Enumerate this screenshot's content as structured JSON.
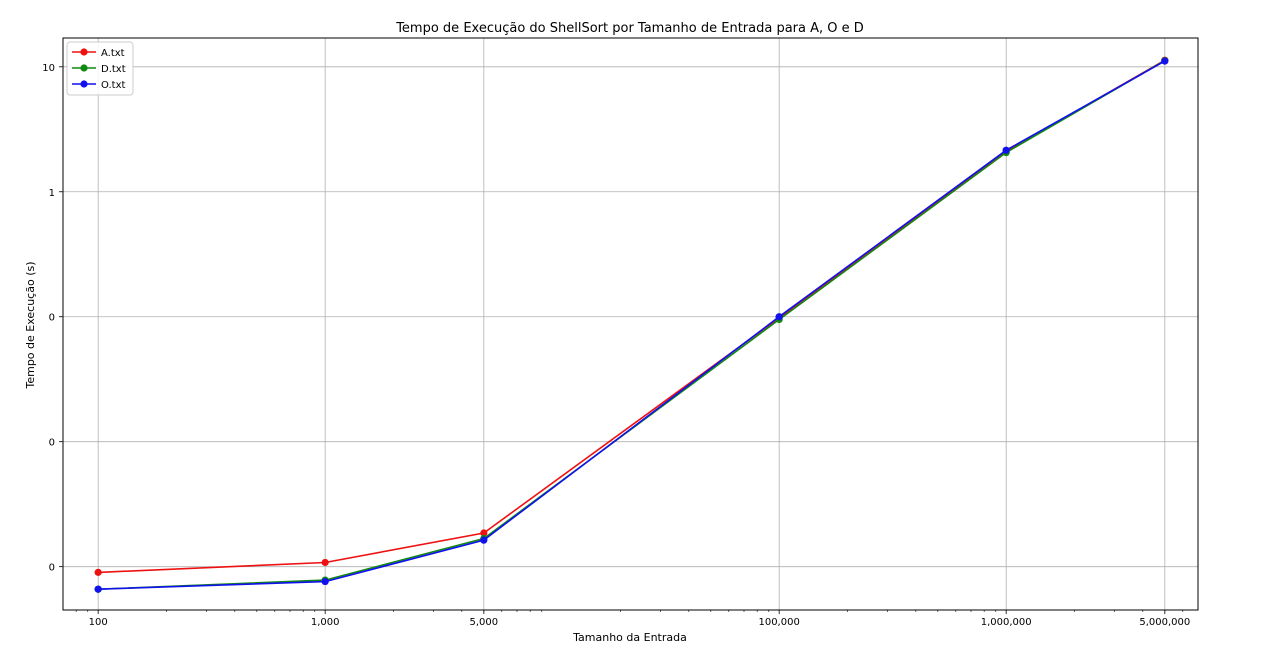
{
  "chart_data": {
    "type": "line",
    "title": "Tempo de Execução do ShellSort por Tamanho de Entrada para A, O e D",
    "xlabel": "Tamanho da Entrada",
    "ylabel": "Tempo de Execução (s)",
    "x_scale": "log",
    "y_scale": "log",
    "x": [
      100,
      1000,
      5000,
      100000,
      1000000,
      5000000
    ],
    "x_tick_labels": [
      "100",
      "1,000",
      "5,000",
      "100,000",
      "1,000,000",
      "5,000,000"
    ],
    "y_ticks": [
      0.001,
      0.01,
      0.1,
      1,
      10
    ],
    "y_tick_labels": [
      "0",
      "0",
      "0",
      "1",
      "10"
    ],
    "xlim": [
      70,
      7000000
    ],
    "ylim": [
      0.00045,
      17
    ],
    "grid": true,
    "legend_position": "top-left",
    "series": [
      {
        "name": "A.txt",
        "color": "#ee1111",
        "values": [
          0.0009,
          0.00108,
          0.00186,
          0.098,
          2.1,
          11.3
        ]
      },
      {
        "name": "D.txt",
        "color": "#118811",
        "values": [
          0.00066,
          0.00078,
          0.00168,
          0.095,
          2.06,
          11.2
        ]
      },
      {
        "name": "O.txt",
        "color": "#1111ee",
        "values": [
          0.00066,
          0.00076,
          0.00163,
          0.1,
          2.15,
          11.1
        ]
      }
    ]
  }
}
